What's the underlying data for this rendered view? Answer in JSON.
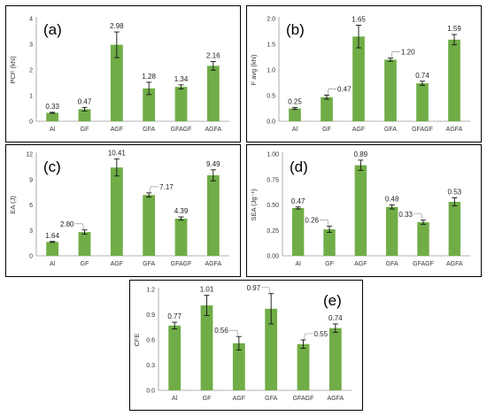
{
  "bar_color": "#70ad47",
  "chart_data": [
    {
      "type": "bar",
      "panel_label": "(a)",
      "ylabel": "PCF (kN)",
      "xlabel": "",
      "categories": [
        "Al",
        "GF",
        "AGF",
        "GFA",
        "GFAGF",
        "AGFA"
      ],
      "values": [
        0.33,
        0.47,
        2.98,
        1.28,
        1.34,
        2.16
      ],
      "errors": [
        0.02,
        0.07,
        0.5,
        0.24,
        0.08,
        0.17
      ],
      "data_labels": [
        "0.33",
        "0.47",
        "2.98",
        "1.28",
        "1.34",
        "2.16"
      ],
      "ylim": [
        0,
        4
      ],
      "yticks": [
        "0",
        "1",
        "2",
        "3",
        "4"
      ],
      "grid": false
    },
    {
      "type": "bar",
      "panel_label": "(b)",
      "ylabel": "F avg (kN)",
      "xlabel": "",
      "categories": [
        "Al",
        "GF",
        "AGF",
        "GFA",
        "GFAGF",
        "AGFA"
      ],
      "values": [
        0.25,
        0.47,
        1.65,
        1.2,
        0.74,
        1.59
      ],
      "errors": [
        0.02,
        0.04,
        0.22,
        0.03,
        0.04,
        0.1
      ],
      "data_labels": [
        "0.25",
        "0.47",
        "1.65",
        "1.20",
        "0.74",
        "1.59"
      ],
      "ylim": [
        0,
        2
      ],
      "yticks": [
        "0.0",
        "0.5",
        "1.0",
        "1.5",
        "2.0"
      ],
      "grid": false
    },
    {
      "type": "bar",
      "panel_label": "(c)",
      "ylabel": "EA (J)",
      "xlabel": "",
      "categories": [
        "Al",
        "GF",
        "AGF",
        "GFA",
        "GFAGF",
        "AGFA"
      ],
      "values": [
        1.64,
        2.8,
        10.41,
        7.17,
        4.39,
        9.49
      ],
      "errors": [
        0.05,
        0.25,
        1.0,
        0.25,
        0.2,
        0.65
      ],
      "data_labels": [
        "1.64",
        "2.80",
        "10.41",
        "7.17",
        "4.39",
        "9.49"
      ],
      "ylim": [
        0,
        12
      ],
      "yticks": [
        "0",
        "3",
        "6",
        "9",
        "12"
      ],
      "grid": false
    },
    {
      "type": "bar",
      "panel_label": "(d)",
      "ylabel": "SEA (Jg⁻¹)",
      "xlabel": "",
      "categories": [
        "Al",
        "GF",
        "AGF",
        "GFA",
        "GFAGF",
        "AGFA"
      ],
      "values": [
        0.47,
        0.26,
        0.89,
        0.48,
        0.33,
        0.53
      ],
      "errors": [
        0.01,
        0.03,
        0.05,
        0.02,
        0.02,
        0.04
      ],
      "data_labels": [
        "0.47",
        "0.26",
        "0.89",
        "0.48",
        "0.33",
        "0.53"
      ],
      "ylim": [
        0,
        1
      ],
      "yticks": [
        "0.00",
        "0.25",
        "0.50",
        "0.75",
        "1.00"
      ],
      "grid": false
    },
    {
      "type": "bar",
      "panel_label": "(e)",
      "ylabel": "CFE",
      "xlabel": "",
      "categories": [
        "Al",
        "GF",
        "AGF",
        "GFA",
        "GFAGF",
        "AGFA"
      ],
      "values": [
        0.77,
        1.01,
        0.56,
        0.97,
        0.55,
        0.74
      ],
      "errors": [
        0.04,
        0.12,
        0.08,
        0.18,
        0.05,
        0.05
      ],
      "data_labels": [
        "0.77",
        "1.01",
        "0.56",
        "0.97",
        "0.55",
        "0.74"
      ],
      "ylim": [
        0,
        1.2
      ],
      "yticks": [
        "0.0",
        "0.3",
        "0.6",
        "0.9",
        "1.2"
      ],
      "grid": false
    }
  ]
}
